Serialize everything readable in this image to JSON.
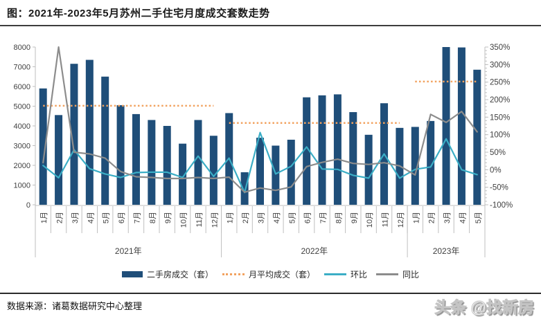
{
  "title": "图：2021年-2023年5月苏州二手住宅月度成交套数走势",
  "footer": {
    "source": "数据来源：诸葛数据研究中心整理",
    "watermark": "头条 @找新房"
  },
  "legend": {
    "bars": "二手房成交（套）",
    "avg": "月平均成交（套）",
    "mom": "环比",
    "yoy": "同比"
  },
  "colors": {
    "bar": "#1F4E79",
    "avg": "#F2A25F",
    "mom": "#3BAEC6",
    "yoy": "#8C8C8C",
    "axis_line": "#BFBFBF",
    "tick_text": "#404040"
  },
  "chart_data": {
    "type": "bar",
    "title": "2021年-2023年5月苏州二手住宅月度成交套数走势",
    "groups": [
      {
        "year": "2021年",
        "months": [
          "1月",
          "2月",
          "3月",
          "4月",
          "5月",
          "6月",
          "7月",
          "8月",
          "9月",
          "10月",
          "11月",
          "12月"
        ]
      },
      {
        "year": "2022年",
        "months": [
          "1月",
          "2月",
          "3月",
          "4月",
          "5月",
          "6月",
          "7月",
          "8月",
          "9月",
          "10月",
          "11月",
          "12月"
        ]
      },
      {
        "year": "2023年",
        "months": [
          "1月",
          "2月",
          "3月",
          "4月",
          "5月"
        ]
      }
    ],
    "series": [
      {
        "name": "二手房成交（套）",
        "type": "bar",
        "axis": "left",
        "values": [
          5900,
          4550,
          7150,
          7350,
          6500,
          5050,
          4600,
          4300,
          4000,
          3100,
          4300,
          3500,
          4650,
          1650,
          3400,
          3000,
          3300,
          5450,
          5550,
          5600,
          4700,
          3550,
          5150,
          3900,
          3950,
          4250,
          8000,
          7980,
          6850
        ]
      },
      {
        "name": "月平均成交（套）",
        "type": "dotted-line",
        "axis": "left",
        "values_per_year": [
          5020,
          4150,
          6250
        ]
      },
      {
        "name": "环比",
        "type": "line",
        "axis": "right",
        "unit": "%",
        "values": [
          12,
          -23,
          57,
          3,
          -12,
          -22,
          -8,
          -7,
          -7,
          -22,
          39,
          -19,
          33,
          -65,
          106,
          -12,
          10,
          65,
          2,
          1,
          -16,
          -24,
          45,
          -24,
          1,
          8,
          88,
          0,
          -14
        ]
      },
      {
        "name": "同比",
        "type": "line",
        "axis": "right",
        "unit": "%",
        "values": [
          20,
          350,
          50,
          45,
          33,
          -5,
          -20,
          -22,
          -25,
          -25,
          -22,
          -25,
          -21,
          -64,
          -52,
          -59,
          -49,
          9,
          21,
          30,
          18,
          15,
          20,
          11,
          -15,
          158,
          135,
          166,
          108
        ]
      }
    ],
    "left_axis": {
      "min": 0,
      "max": 8000,
      "step": 1000,
      "ticks": [
        "8000",
        "7000",
        "6000",
        "5000",
        "4000",
        "3000",
        "2000",
        "1000",
        "0"
      ]
    },
    "right_axis": {
      "min": -100,
      "max": 350,
      "step": 50,
      "ticks": [
        "350%",
        "300%",
        "250%",
        "200%",
        "150%",
        "100%",
        "50%",
        "0%",
        "-50%",
        "-100%"
      ]
    },
    "grid": false,
    "legend_position": "bottom"
  }
}
